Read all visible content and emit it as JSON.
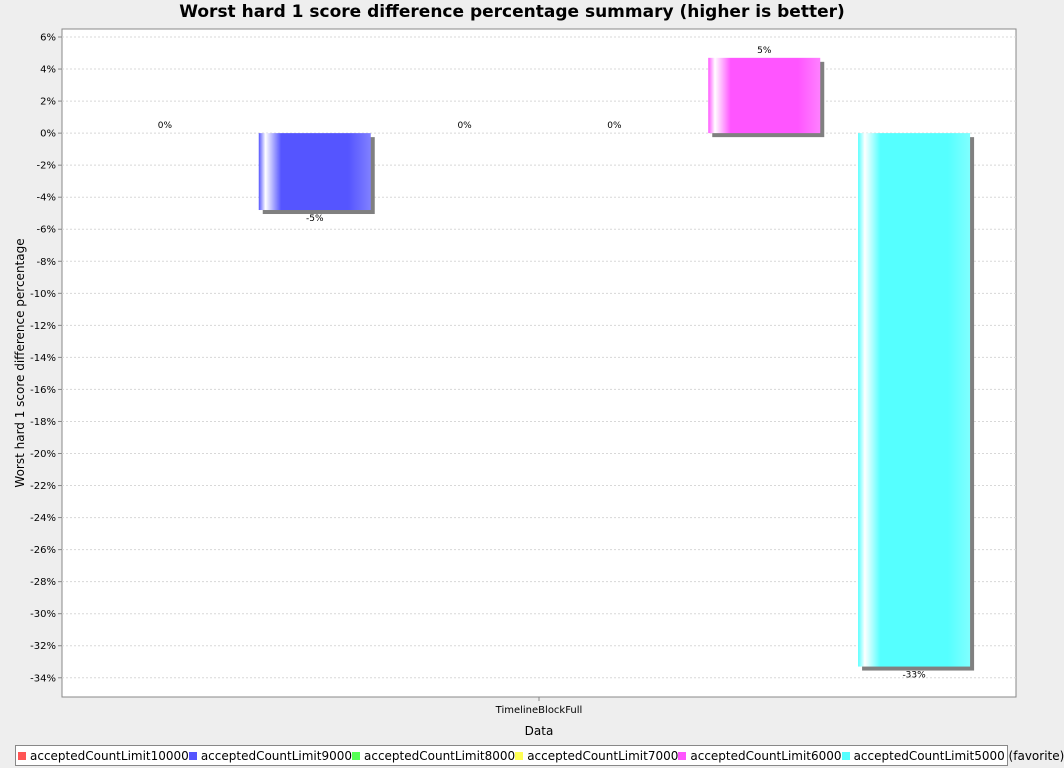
{
  "chart_data": {
    "type": "bar",
    "title": "Worst hard 1 score difference percentage summary (higher is better)",
    "xlabel": "Data",
    "ylabel": "Worst hard 1 score difference percentage",
    "categories": [
      "TimelineBlockFull"
    ],
    "ylim": [
      -35.2,
      6.5
    ],
    "yticks": [
      6,
      4,
      2,
      0,
      -2,
      -4,
      -6,
      -8,
      -10,
      -12,
      -14,
      -16,
      -18,
      -20,
      -22,
      -24,
      -26,
      -28,
      -30,
      -32,
      -34
    ],
    "ytick_labels": [
      "6%",
      "4%",
      "2%",
      "0%",
      "-2%",
      "-4%",
      "-6%",
      "-8%",
      "-10%",
      "-12%",
      "-14%",
      "-16%",
      "-18%",
      "-20%",
      "-22%",
      "-24%",
      "-26%",
      "-28%",
      "-30%",
      "-32%",
      "-34%"
    ],
    "grid": true,
    "legend_position": "bottom",
    "series": [
      {
        "name": "acceptedCountLimit10000",
        "color": "#ff5555",
        "values": [
          0
        ],
        "label": "0%"
      },
      {
        "name": "acceptedCountLimit9000",
        "color": "#5555ff",
        "values": [
          -4.8
        ],
        "label": "-5%"
      },
      {
        "name": "acceptedCountLimit8000",
        "color": "#55ff55",
        "values": [
          0
        ],
        "label": "0%"
      },
      {
        "name": "acceptedCountLimit7000",
        "color": "#ffff55",
        "values": [
          0
        ],
        "label": "0%"
      },
      {
        "name": "acceptedCountLimit6000",
        "color": "#ff55ff",
        "values": [
          4.7
        ],
        "label": "5%"
      },
      {
        "name": "acceptedCountLimit5000 (favorite)",
        "color": "#55ffff",
        "values": [
          -33.3
        ],
        "label": "-33%"
      }
    ]
  }
}
